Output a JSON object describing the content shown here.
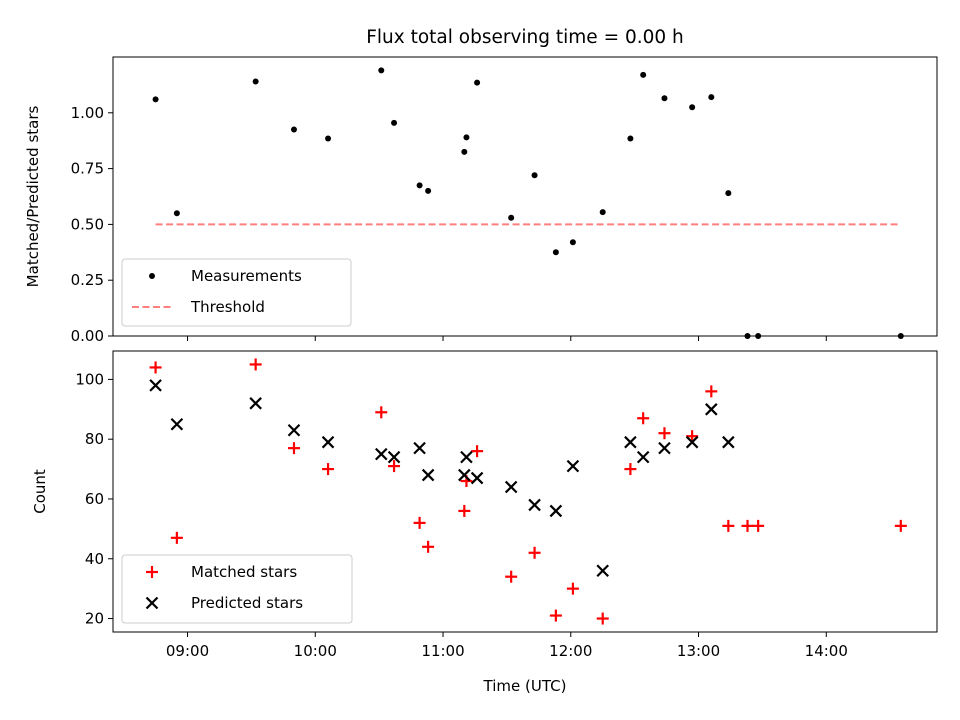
{
  "chart_data": [
    {
      "type": "scatter",
      "title": "Flux total observing time = 0.00 h",
      "xlabel": "",
      "ylabel": "Matched/Predicted stars",
      "ylim": [
        0.0,
        1.25
      ],
      "yticks": [
        "0.00",
        "0.25",
        "0.50",
        "0.75",
        "1.00"
      ],
      "ytick_values": [
        0.0,
        0.25,
        0.5,
        0.75,
        1.0
      ],
      "xlim": [
        "08:25",
        "14:52"
      ],
      "xticks": [
        "09:00",
        "10:00",
        "11:00",
        "12:00",
        "13:00",
        "14:00"
      ],
      "xtick_labels_visible": false,
      "legend": {
        "placement": "lower-left",
        "entries": [
          "Measurements",
          "Threshold"
        ]
      },
      "series": [
        {
          "name": "Measurements",
          "marker": "dot",
          "color": "#000000",
          "points": [
            {
              "x": "08:45",
              "y": 1.06
            },
            {
              "x": "08:55",
              "y": 0.55
            },
            {
              "x": "09:32",
              "y": 1.14
            },
            {
              "x": "09:50",
              "y": 0.925
            },
            {
              "x": "10:06",
              "y": 0.885
            },
            {
              "x": "10:31",
              "y": 1.19
            },
            {
              "x": "10:37",
              "y": 0.955
            },
            {
              "x": "10:49",
              "y": 0.675
            },
            {
              "x": "10:53",
              "y": 0.65
            },
            {
              "x": "11:10",
              "y": 0.825
            },
            {
              "x": "11:11",
              "y": 0.89
            },
            {
              "x": "11:16",
              "y": 1.135
            },
            {
              "x": "11:32",
              "y": 0.53
            },
            {
              "x": "11:43",
              "y": 0.72
            },
            {
              "x": "11:53",
              "y": 0.375
            },
            {
              "x": "12:01",
              "y": 0.42
            },
            {
              "x": "12:15",
              "y": 0.555
            },
            {
              "x": "12:28",
              "y": 0.885
            },
            {
              "x": "12:34",
              "y": 1.17
            },
            {
              "x": "12:44",
              "y": 1.065
            },
            {
              "x": "12:57",
              "y": 1.025
            },
            {
              "x": "13:06",
              "y": 1.07
            },
            {
              "x": "13:14",
              "y": 0.64
            },
            {
              "x": "13:23",
              "y": 0.0
            },
            {
              "x": "13:28",
              "y": 0.0
            },
            {
              "x": "14:35",
              "y": 0.0
            }
          ]
        },
        {
          "name": "Threshold",
          "style": "dashed",
          "color": "#ff7f7f",
          "points": [
            {
              "x": "08:45",
              "y": 0.5
            },
            {
              "x": "14:35",
              "y": 0.5
            }
          ]
        }
      ]
    },
    {
      "type": "scatter",
      "title": "",
      "xlabel": "Time (UTC)",
      "ylabel": "Count",
      "ylim": [
        15.5,
        109.5
      ],
      "yticks": [
        "20",
        "40",
        "60",
        "80",
        "100"
      ],
      "ytick_values": [
        20,
        40,
        60,
        80,
        100
      ],
      "xlim": [
        "08:25",
        "14:52"
      ],
      "xticks": [
        "09:00",
        "10:00",
        "11:00",
        "12:00",
        "13:00",
        "14:00"
      ],
      "legend": {
        "placement": "lower-left",
        "entries": [
          "Matched stars",
          "Predicted stars"
        ]
      },
      "series": [
        {
          "name": "Matched stars",
          "marker": "plus",
          "color": "#ff0000",
          "points": [
            {
              "x": "08:45",
              "y": 104
            },
            {
              "x": "08:55",
              "y": 47
            },
            {
              "x": "09:32",
              "y": 105
            },
            {
              "x": "09:50",
              "y": 77
            },
            {
              "x": "10:06",
              "y": 70
            },
            {
              "x": "10:31",
              "y": 89
            },
            {
              "x": "10:37",
              "y": 71
            },
            {
              "x": "10:49",
              "y": 52
            },
            {
              "x": "10:53",
              "y": 44
            },
            {
              "x": "11:10",
              "y": 56
            },
            {
              "x": "11:11",
              "y": 66
            },
            {
              "x": "11:16",
              "y": 76
            },
            {
              "x": "11:32",
              "y": 34
            },
            {
              "x": "11:43",
              "y": 42
            },
            {
              "x": "11:53",
              "y": 21
            },
            {
              "x": "12:01",
              "y": 30
            },
            {
              "x": "12:15",
              "y": 20
            },
            {
              "x": "12:28",
              "y": 70
            },
            {
              "x": "12:34",
              "y": 87
            },
            {
              "x": "12:44",
              "y": 82
            },
            {
              "x": "12:57",
              "y": 81
            },
            {
              "x": "13:06",
              "y": 96
            },
            {
              "x": "13:14",
              "y": 51
            },
            {
              "x": "13:23",
              "y": 51
            },
            {
              "x": "13:28",
              "y": 51
            },
            {
              "x": "14:35",
              "y": 51
            }
          ]
        },
        {
          "name": "Predicted stars",
          "marker": "x",
          "color": "#000000",
          "points": [
            {
              "x": "08:45",
              "y": 98
            },
            {
              "x": "08:55",
              "y": 85
            },
            {
              "x": "09:32",
              "y": 92
            },
            {
              "x": "09:50",
              "y": 83
            },
            {
              "x": "10:06",
              "y": 79
            },
            {
              "x": "10:31",
              "y": 75
            },
            {
              "x": "10:37",
              "y": 74
            },
            {
              "x": "10:49",
              "y": 77
            },
            {
              "x": "10:53",
              "y": 68
            },
            {
              "x": "11:10",
              "y": 68
            },
            {
              "x": "11:11",
              "y": 74
            },
            {
              "x": "11:16",
              "y": 67
            },
            {
              "x": "11:32",
              "y": 64
            },
            {
              "x": "11:43",
              "y": 58
            },
            {
              "x": "11:53",
              "y": 56
            },
            {
              "x": "12:01",
              "y": 71
            },
            {
              "x": "12:15",
              "y": 36
            },
            {
              "x": "12:28",
              "y": 79
            },
            {
              "x": "12:34",
              "y": 74
            },
            {
              "x": "12:44",
              "y": 77
            },
            {
              "x": "12:57",
              "y": 79
            },
            {
              "x": "13:06",
              "y": 90
            },
            {
              "x": "13:14",
              "y": 79
            }
          ]
        }
      ]
    }
  ]
}
